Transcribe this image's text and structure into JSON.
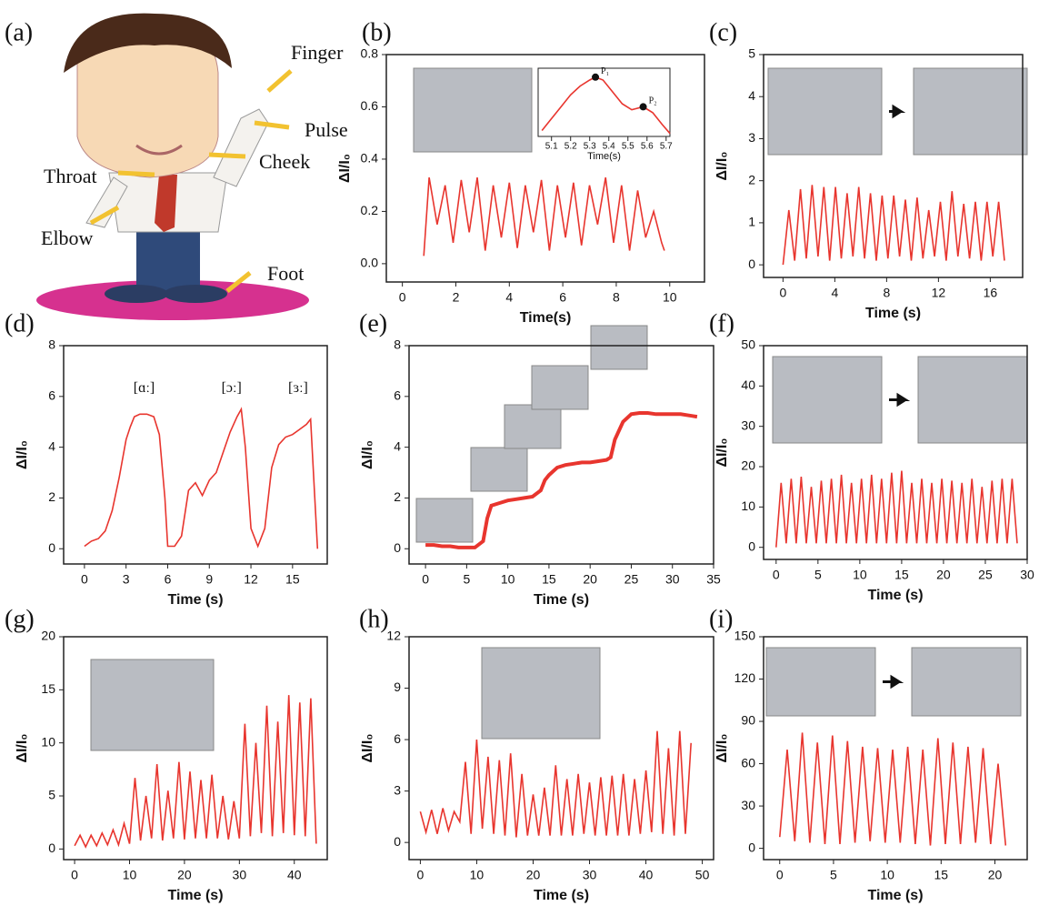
{
  "illustration": {
    "label": "(a)",
    "sites": [
      "Finger",
      "Pulse",
      "Cheek",
      "Throat",
      "Elbow",
      "Foot"
    ]
  },
  "chart_data": [
    {
      "label": "(b)",
      "type": "line",
      "xlabel": "Time(s)",
      "ylabel": "ΔI/I₀",
      "color": "#e8352e",
      "xlim": [
        -0.6,
        11.3
      ],
      "xticks": [
        0,
        2,
        4,
        6,
        8,
        10
      ],
      "ylim": [
        -0.07,
        0.8
      ],
      "yticks": [
        {
          "value": 0,
          "label": "0.0"
        },
        {
          "value": 0.2,
          "label": "0.2"
        },
        {
          "value": 0.4,
          "label": "0.4"
        },
        {
          "value": 0.6,
          "label": "0.6"
        },
        {
          "value": 0.8,
          "label": "0.8"
        }
      ],
      "x": [
        0.8,
        1.0,
        1.3,
        1.6,
        1.9,
        2.2,
        2.5,
        2.8,
        3.1,
        3.4,
        3.7,
        4.0,
        4.3,
        4.6,
        4.9,
        5.2,
        5.5,
        5.8,
        6.1,
        6.4,
        6.7,
        7.0,
        7.3,
        7.6,
        7.9,
        8.2,
        8.5,
        8.8,
        9.1,
        9.4,
        9.7,
        9.8
      ],
      "values": [
        0.03,
        0.33,
        0.15,
        0.3,
        0.08,
        0.32,
        0.12,
        0.33,
        0.05,
        0.3,
        0.1,
        0.31,
        0.06,
        0.3,
        0.12,
        0.32,
        0.05,
        0.3,
        0.1,
        0.31,
        0.07,
        0.3,
        0.15,
        0.33,
        0.08,
        0.3,
        0.05,
        0.28,
        0.1,
        0.2,
        0.08,
        0.05
      ]
    },
    {
      "type": "line",
      "xlabel": "Time(s)",
      "color": "#e8352e",
      "xlim": [
        5.03,
        5.72
      ],
      "xticks": [
        5.1,
        5.2,
        5.3,
        5.4,
        5.5,
        5.6,
        5.7
      ],
      "ylim": [
        0,
        1.15
      ],
      "x": [
        5.05,
        5.1,
        5.15,
        5.2,
        5.25,
        5.3,
        5.33,
        5.37,
        5.42,
        5.47,
        5.52,
        5.58,
        5.63,
        5.68,
        5.72
      ],
      "values": [
        0.1,
        0.3,
        0.5,
        0.7,
        0.85,
        0.95,
        1.0,
        0.95,
        0.75,
        0.55,
        0.45,
        0.5,
        0.4,
        0.2,
        0.05
      ],
      "annotations": [
        {
          "text": "P₁",
          "x": 5.33,
          "y": 1.0
        },
        {
          "text": "P₂",
          "x": 5.58,
          "y": 0.5
        }
      ]
    },
    {
      "label": "(c)",
      "type": "line",
      "xlabel": "Time (s)",
      "ylabel": "ΔI/I₀",
      "color": "#e8352e",
      "xlim": [
        -1.5,
        18.5
      ],
      "xticks": [
        0,
        4,
        8,
        12,
        16
      ],
      "ylim": [
        -0.3,
        5
      ],
      "yticks": [
        0,
        1,
        2,
        3,
        4,
        5
      ],
      "x": [
        0,
        0.45,
        0.9,
        1.35,
        1.8,
        2.25,
        2.7,
        3.15,
        3.6,
        4.05,
        4.5,
        4.95,
        5.4,
        5.85,
        6.3,
        6.75,
        7.2,
        7.65,
        8.1,
        8.55,
        9.0,
        9.45,
        9.9,
        10.35,
        10.8,
        11.25,
        11.7,
        12.15,
        12.6,
        13.05,
        13.5,
        13.95,
        14.4,
        14.85,
        15.3,
        15.75,
        16.2,
        16.65,
        17.1
      ],
      "values": [
        0,
        1.3,
        0.1,
        1.8,
        0.15,
        1.9,
        0.2,
        1.85,
        0.1,
        1.85,
        0.15,
        1.7,
        0.2,
        1.85,
        0.15,
        1.7,
        0.1,
        1.65,
        0.15,
        1.65,
        0.2,
        1.55,
        0.1,
        1.6,
        0.15,
        1.3,
        0.2,
        1.5,
        0.1,
        1.75,
        0.2,
        1.45,
        0.15,
        1.5,
        0.1,
        1.5,
        0.2,
        1.5,
        0.1
      ]
    },
    {
      "label": "(d)",
      "type": "line",
      "xlabel": "Time (s)",
      "ylabel": "ΔI/I₀",
      "color": "#e8352e",
      "xlim": [
        -1.5,
        17.5
      ],
      "xticks": [
        0,
        3,
        6,
        9,
        12,
        15
      ],
      "ylim": [
        -0.6,
        8
      ],
      "yticks": [
        0,
        2,
        4,
        6,
        8
      ],
      "x": [
        0,
        0.5,
        1,
        1.5,
        2,
        2.5,
        3,
        3.3,
        3.6,
        4,
        4.5,
        5,
        5.4,
        5.8,
        6,
        6.5,
        7,
        7.5,
        8,
        8.5,
        9,
        9.5,
        10,
        10.5,
        11,
        11.3,
        11.6,
        12,
        12.5,
        13,
        13.5,
        14,
        14.5,
        15,
        15.5,
        16,
        16.3,
        16.6,
        16.8
      ],
      "values": [
        0.1,
        0.3,
        0.4,
        0.7,
        1.5,
        2.8,
        4.3,
        4.8,
        5.2,
        5.3,
        5.3,
        5.2,
        4.5,
        2,
        0.1,
        0.1,
        0.5,
        2.3,
        2.6,
        2.1,
        2.7,
        3,
        3.8,
        4.6,
        5.2,
        5.5,
        4,
        0.8,
        0.1,
        0.8,
        3.2,
        4.1,
        4.4,
        4.5,
        4.7,
        4.9,
        5.1,
        2,
        0
      ],
      "annotations": [
        {
          "text": "[ɑː]",
          "x": 4.3,
          "y": 6.3
        },
        {
          "text": "[ɔː]",
          "x": 10.6,
          "y": 6.3
        },
        {
          "text": "[ɜː]",
          "x": 15.4,
          "y": 6.3
        }
      ]
    },
    {
      "label": "(e)",
      "type": "line",
      "xlabel": "Time (s)",
      "ylabel": "ΔI/I₀",
      "color": "#e8352e",
      "xlim": [
        -2,
        35
      ],
      "xticks": [
        0,
        5,
        10,
        15,
        20,
        25,
        30,
        35
      ],
      "ylim": [
        -0.6,
        8
      ],
      "yticks": [
        0,
        2,
        4,
        6,
        8
      ],
      "x": [
        0,
        1,
        2,
        3,
        4,
        5,
        6,
        7,
        7.5,
        8,
        9,
        10,
        11,
        12,
        13,
        14,
        14.5,
        15,
        16,
        17,
        18,
        19,
        20,
        21,
        22,
        22.5,
        23,
        24,
        25,
        26,
        27,
        28,
        29,
        30,
        31,
        32,
        33
      ],
      "values": [
        0.15,
        0.15,
        0.1,
        0.1,
        0.05,
        0.05,
        0.05,
        0.3,
        1.2,
        1.7,
        1.8,
        1.9,
        1.95,
        2,
        2.05,
        2.3,
        2.7,
        2.9,
        3.2,
        3.3,
        3.35,
        3.4,
        3.4,
        3.45,
        3.5,
        3.6,
        4.3,
        5,
        5.3,
        5.35,
        5.35,
        5.3,
        5.3,
        5.3,
        5.3,
        5.25,
        5.2
      ]
    },
    {
      "label": "(f)",
      "type": "line",
      "xlabel": "Time (s)",
      "ylabel": "ΔI/I₀",
      "color": "#e8352e",
      "xlim": [
        -1.5,
        30
      ],
      "xticks": [
        0,
        5,
        10,
        15,
        20,
        25,
        30
      ],
      "ylim": [
        -3,
        50
      ],
      "yticks": [
        0,
        10,
        20,
        30,
        40,
        50
      ],
      "x": [
        0,
        0.6,
        1.2,
        1.8,
        2.4,
        3,
        3.6,
        4.2,
        4.8,
        5.4,
        6,
        6.6,
        7.2,
        7.8,
        8.4,
        9,
        9.6,
        10.2,
        10.8,
        11.4,
        12,
        12.6,
        13.2,
        13.8,
        14.4,
        15,
        15.6,
        16.2,
        16.8,
        17.4,
        18,
        18.6,
        19.2,
        19.8,
        20.4,
        21,
        21.6,
        22.2,
        22.8,
        23.4,
        24,
        24.6,
        25.2,
        25.8,
        26.4,
        27,
        27.6,
        28.2,
        28.8
      ],
      "values": [
        0,
        16,
        1,
        17,
        1,
        17.5,
        1,
        15,
        1,
        16.5,
        1,
        17,
        1,
        18,
        1,
        16,
        1,
        17,
        1,
        18,
        1,
        17,
        1,
        18.5,
        1,
        19,
        1,
        16,
        1,
        17,
        1,
        16,
        1,
        17,
        1,
        16.5,
        1,
        16,
        1,
        17,
        1,
        15,
        1,
        16.5,
        1,
        17,
        1,
        17,
        1
      ]
    },
    {
      "label": "(g)",
      "type": "line",
      "xlabel": "Time (s)",
      "ylabel": "ΔI/I₀",
      "color": "#e8352e",
      "xlim": [
        -2,
        46
      ],
      "xticks": [
        0,
        10,
        20,
        30,
        40
      ],
      "ylim": [
        -1,
        20
      ],
      "yticks": [
        0,
        5,
        10,
        15,
        20
      ],
      "x": [
        0,
        1,
        2,
        3,
        4,
        5,
        6,
        7,
        8,
        9,
        10,
        11,
        12,
        13,
        14,
        15,
        16,
        17,
        18,
        19,
        20,
        21,
        22,
        23,
        24,
        25,
        26,
        27,
        28,
        29,
        30,
        31,
        32,
        33,
        34,
        35,
        36,
        37,
        38,
        39,
        40,
        41,
        42,
        43,
        44
      ],
      "values": [
        0.3,
        1.3,
        0.2,
        1.3,
        0.3,
        1.5,
        0.4,
        1.8,
        0.4,
        2.4,
        0.5,
        6.7,
        0.8,
        5,
        1,
        8,
        0.8,
        5.5,
        1,
        8.2,
        0.9,
        7.3,
        1,
        6.5,
        1,
        7,
        1,
        5,
        0.9,
        4.5,
        1,
        11.8,
        1.2,
        10,
        1.5,
        13.5,
        1.2,
        12,
        1.5,
        14.5,
        1.3,
        13.8,
        1.2,
        14.2,
        0.5
      ]
    },
    {
      "label": "(h)",
      "type": "line",
      "xlabel": "Time (s)",
      "ylabel": "ΔI/I₀",
      "color": "#e8352e",
      "xlim": [
        -2,
        52
      ],
      "xticks": [
        0,
        10,
        20,
        30,
        40,
        50
      ],
      "ylim": [
        -1,
        12
      ],
      "yticks": [
        0,
        3,
        6,
        9,
        12
      ],
      "x": [
        0,
        1,
        2,
        3,
        4,
        5,
        6,
        7,
        8,
        9,
        10,
        11,
        12,
        13,
        14,
        15,
        16,
        17,
        18,
        19,
        20,
        21,
        22,
        23,
        24,
        25,
        26,
        27,
        28,
        29,
        30,
        31,
        32,
        33,
        34,
        35,
        36,
        37,
        38,
        39,
        40,
        41,
        42,
        43,
        44,
        45,
        46,
        47,
        48
      ],
      "values": [
        1.8,
        0.6,
        1.9,
        0.5,
        2,
        0.7,
        1.8,
        1.2,
        4.7,
        0.5,
        6,
        0.8,
        5,
        0.5,
        4.8,
        0.4,
        5.2,
        0.3,
        4,
        0.4,
        2.8,
        0.4,
        3.2,
        0.4,
        4.5,
        0.4,
        3.7,
        0.4,
        4,
        0.5,
        3.5,
        0.4,
        3.8,
        0.4,
        3.9,
        0.4,
        4,
        0.4,
        3.7,
        0.5,
        4.2,
        0.6,
        6.5,
        0.5,
        5.5,
        0.4,
        6.5,
        0.5,
        5.8
      ]
    },
    {
      "label": "(i)",
      "type": "line",
      "xlabel": "Time (s)",
      "ylabel": "ΔI/I₀",
      "color": "#e8352e",
      "xlim": [
        -1.5,
        23
      ],
      "xticks": [
        0,
        5,
        10,
        15,
        20
      ],
      "ylim": [
        -8,
        150
      ],
      "yticks": [
        0,
        30,
        60,
        90,
        120,
        150
      ],
      "x": [
        0,
        0.7,
        1.4,
        2.1,
        2.8,
        3.5,
        4.2,
        4.9,
        5.6,
        6.3,
        7,
        7.7,
        8.4,
        9.1,
        9.8,
        10.5,
        11.2,
        11.9,
        12.6,
        13.3,
        14,
        14.7,
        15.4,
        16.1,
        16.8,
        17.5,
        18.2,
        18.9,
        19.6,
        20.3,
        21
      ],
      "values": [
        8,
        70,
        5,
        82,
        4,
        75,
        3,
        80,
        3,
        76,
        4,
        72,
        5,
        71,
        4,
        70,
        4,
        72,
        3,
        70,
        2,
        78,
        3,
        75,
        3,
        72,
        4,
        71,
        3,
        60,
        2
      ]
    }
  ]
}
